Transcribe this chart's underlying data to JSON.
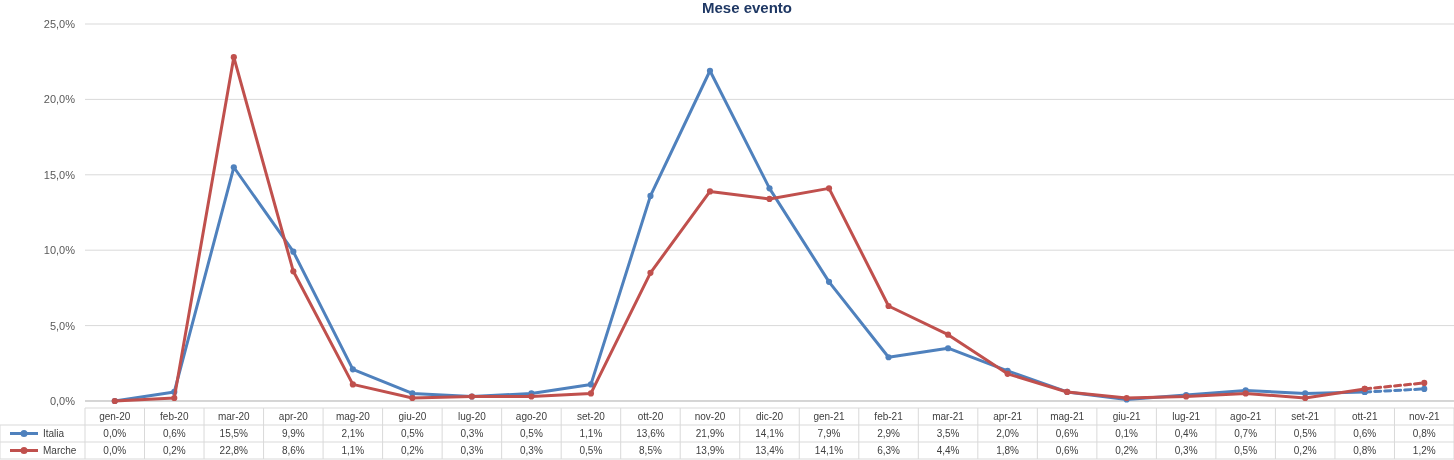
{
  "chart_data": {
    "type": "line",
    "title": "Mese evento",
    "categories": [
      "gen-20",
      "feb-20",
      "mar-20",
      "apr-20",
      "mag-20",
      "giu-20",
      "lug-20",
      "ago-20",
      "set-20",
      "ott-20",
      "nov-20",
      "dic-20",
      "gen-21",
      "feb-21",
      "mar-21",
      "apr-21",
      "mag-21",
      "giu-21",
      "lug-21",
      "ago-21",
      "set-21",
      "ott-21",
      "nov-21"
    ],
    "series": [
      {
        "name": "Italia",
        "color": "#4f81bd",
        "line_style": "solid",
        "values": [
          0.0,
          0.6,
          15.5,
          9.9,
          2.1,
          0.5,
          0.3,
          0.5,
          1.1,
          13.6,
          21.9,
          14.1,
          7.9,
          2.9,
          3.5,
          2.0,
          0.6,
          0.1,
          0.4,
          0.7,
          0.5,
          0.6,
          null
        ],
        "value_labels": [
          "0,0%",
          "0,6%",
          "15,5%",
          "9,9%",
          "2,1%",
          "0,5%",
          "0,3%",
          "0,5%",
          "1,1%",
          "13,6%",
          "21,9%",
          "14,1%",
          "7,9%",
          "2,9%",
          "3,5%",
          "2,0%",
          "0,6%",
          "0,1%",
          "0,4%",
          "0,7%",
          "0,5%",
          "0,6%",
          "0,8%"
        ]
      },
      {
        "name": "Marche",
        "color": "#c0504d",
        "line_style": "solid",
        "values": [
          0.0,
          0.2,
          22.8,
          8.6,
          1.1,
          0.2,
          0.3,
          0.3,
          0.5,
          8.5,
          13.9,
          13.4,
          14.1,
          6.3,
          4.4,
          1.8,
          0.6,
          0.2,
          0.3,
          0.5,
          0.2,
          0.8,
          null
        ],
        "value_labels": [
          "0,0%",
          "0,2%",
          "22,8%",
          "8,6%",
          "1,1%",
          "0,2%",
          "0,3%",
          "0,3%",
          "0,5%",
          "8,5%",
          "13,9%",
          "13,4%",
          "14,1%",
          "6,3%",
          "4,4%",
          "1,8%",
          "0,6%",
          "0,2%",
          "0,3%",
          "0,5%",
          "0,2%",
          "0,8%",
          "1,2%"
        ]
      },
      {
        "color": "#4f81bd",
        "line_style": "dashed",
        "values": [
          null,
          null,
          null,
          null,
          null,
          null,
          null,
          null,
          null,
          null,
          null,
          null,
          null,
          null,
          null,
          null,
          null,
          null,
          null,
          null,
          null,
          0.6,
          0.8
        ]
      },
      {
        "color": "#c0504d",
        "line_style": "dashed",
        "values": [
          null,
          null,
          null,
          null,
          null,
          null,
          null,
          null,
          null,
          null,
          null,
          null,
          null,
          null,
          null,
          null,
          null,
          null,
          null,
          null,
          null,
          0.8,
          1.2
        ]
      }
    ],
    "ylim": [
      0,
      25
    ],
    "yticks": [
      {
        "value": 0,
        "label": "0,0%"
      },
      {
        "value": 5,
        "label": "5,0%"
      },
      {
        "value": 10,
        "label": "10,0%"
      },
      {
        "value": 15,
        "label": "15,0%"
      },
      {
        "value": 20,
        "label": "20,0%"
      },
      {
        "value": 25,
        "label": "25,0%"
      }
    ],
    "grid": "y",
    "marker": "circle",
    "legend": "bottom"
  }
}
